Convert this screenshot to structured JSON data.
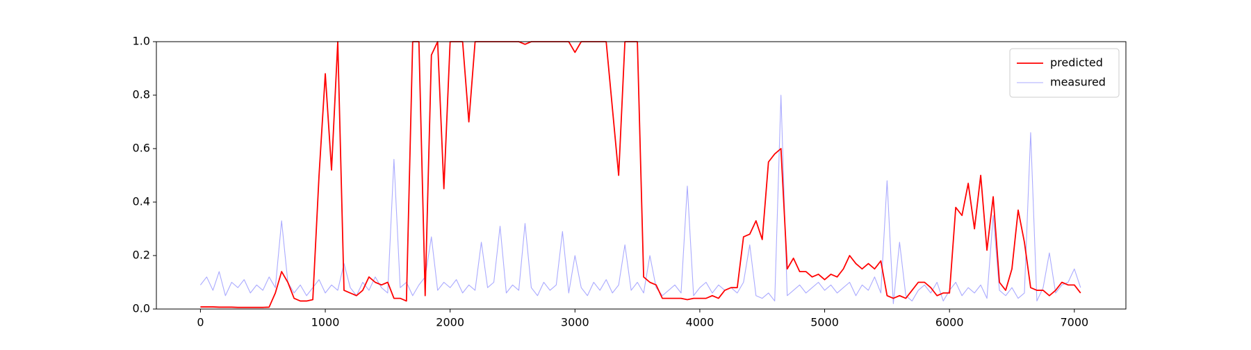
{
  "chart_data": {
    "type": "line",
    "x": [
      0,
      50,
      100,
      150,
      200,
      250,
      300,
      350,
      400,
      450,
      500,
      550,
      600,
      650,
      700,
      750,
      800,
      850,
      900,
      950,
      1000,
      1050,
      1100,
      1150,
      1200,
      1250,
      1300,
      1350,
      1400,
      1450,
      1500,
      1550,
      1600,
      1650,
      1700,
      1750,
      1800,
      1850,
      1900,
      1950,
      2000,
      2050,
      2100,
      2150,
      2200,
      2250,
      2300,
      2350,
      2400,
      2450,
      2500,
      2550,
      2600,
      2650,
      2700,
      2750,
      2800,
      2850,
      2900,
      2950,
      3000,
      3050,
      3100,
      3150,
      3200,
      3250,
      3300,
      3350,
      3400,
      3450,
      3500,
      3550,
      3600,
      3650,
      3700,
      3750,
      3800,
      3850,
      3900,
      3950,
      4000,
      4050,
      4100,
      4150,
      4200,
      4250,
      4300,
      4350,
      4400,
      4450,
      4500,
      4550,
      4600,
      4650,
      4700,
      4750,
      4800,
      4850,
      4900,
      4950,
      5000,
      5050,
      5100,
      5150,
      5200,
      5250,
      5300,
      5350,
      5400,
      5450,
      5500,
      5550,
      5600,
      5650,
      5700,
      5750,
      5800,
      5850,
      5900,
      5950,
      6000,
      6050,
      6100,
      6150,
      6200,
      6250,
      6300,
      6350,
      6400,
      6450,
      6500,
      6550,
      6600,
      6650,
      6700,
      6750,
      6800,
      6850,
      6900,
      6950,
      7000,
      7050
    ],
    "series": [
      {
        "name": "predicted",
        "color": "#ff0000",
        "width": 1.8,
        "values": [
          0.008,
          0.008,
          0.008,
          0.007,
          0.007,
          0.007,
          0.006,
          0.006,
          0.006,
          0.006,
          0.006,
          0.007,
          0.06,
          0.14,
          0.1,
          0.04,
          0.03,
          0.03,
          0.035,
          0.5,
          0.88,
          0.52,
          1.0,
          0.07,
          0.06,
          0.05,
          0.07,
          0.12,
          0.1,
          0.09,
          0.1,
          0.04,
          0.04,
          0.03,
          1.0,
          1.0,
          0.05,
          0.95,
          1.0,
          0.45,
          1.0,
          1.0,
          1.0,
          0.7,
          1.0,
          1.0,
          1.0,
          1.0,
          1.0,
          1.0,
          1.0,
          1.0,
          0.99,
          1.0,
          1.0,
          1.0,
          1.0,
          1.0,
          1.0,
          1.0,
          0.96,
          1.0,
          1.0,
          1.0,
          1.0,
          1.0,
          0.75,
          0.5,
          1.0,
          1.0,
          1.0,
          0.12,
          0.1,
          0.09,
          0.04,
          0.04,
          0.04,
          0.04,
          0.035,
          0.04,
          0.04,
          0.04,
          0.05,
          0.04,
          0.07,
          0.08,
          0.08,
          0.27,
          0.28,
          0.33,
          0.26,
          0.55,
          0.58,
          0.6,
          0.15,
          0.19,
          0.14,
          0.14,
          0.12,
          0.13,
          0.11,
          0.13,
          0.12,
          0.15,
          0.2,
          0.17,
          0.15,
          0.17,
          0.15,
          0.18,
          0.05,
          0.04,
          0.05,
          0.04,
          0.07,
          0.1,
          0.1,
          0.08,
          0.05,
          0.06,
          0.06,
          0.38,
          0.35,
          0.47,
          0.3,
          0.5,
          0.22,
          0.42,
          0.1,
          0.07,
          0.15,
          0.37,
          0.25,
          0.08,
          0.07,
          0.07,
          0.05,
          0.07,
          0.1,
          0.09,
          0.09,
          0.06
        ]
      },
      {
        "name": "measured",
        "color": "#aaaaff",
        "width": 1.1,
        "values": [
          0.09,
          0.12,
          0.07,
          0.14,
          0.05,
          0.1,
          0.08,
          0.11,
          0.06,
          0.09,
          0.07,
          0.12,
          0.08,
          0.33,
          0.1,
          0.06,
          0.09,
          0.05,
          0.08,
          0.11,
          0.06,
          0.09,
          0.07,
          0.17,
          0.08,
          0.05,
          0.1,
          0.07,
          0.12,
          0.08,
          0.06,
          0.56,
          0.08,
          0.1,
          0.05,
          0.09,
          0.12,
          0.27,
          0.07,
          0.1,
          0.08,
          0.11,
          0.06,
          0.09,
          0.07,
          0.25,
          0.08,
          0.1,
          0.31,
          0.06,
          0.09,
          0.07,
          0.32,
          0.08,
          0.05,
          0.1,
          0.07,
          0.09,
          0.29,
          0.06,
          0.2,
          0.08,
          0.05,
          0.1,
          0.07,
          0.11,
          0.06,
          0.09,
          0.24,
          0.07,
          0.1,
          0.06,
          0.2,
          0.08,
          0.05,
          0.07,
          0.09,
          0.06,
          0.46,
          0.05,
          0.08,
          0.1,
          0.06,
          0.09,
          0.07,
          0.08,
          0.06,
          0.1,
          0.24,
          0.05,
          0.04,
          0.06,
          0.03,
          0.8,
          0.05,
          0.07,
          0.09,
          0.06,
          0.08,
          0.1,
          0.07,
          0.09,
          0.06,
          0.08,
          0.1,
          0.05,
          0.09,
          0.07,
          0.12,
          0.06,
          0.48,
          0.02,
          0.25,
          0.05,
          0.03,
          0.07,
          0.09,
          0.06,
          0.1,
          0.03,
          0.07,
          0.1,
          0.05,
          0.08,
          0.06,
          0.09,
          0.04,
          0.35,
          0.07,
          0.05,
          0.08,
          0.04,
          0.06,
          0.66,
          0.03,
          0.08,
          0.21,
          0.06,
          0.09,
          0.1,
          0.15,
          0.08
        ]
      }
    ],
    "xlim": [
      -353,
      7413
    ],
    "xticks": [
      0,
      1000,
      2000,
      3000,
      4000,
      5000,
      6000,
      7000
    ],
    "ylim": [
      0,
      1
    ],
    "yticks": [
      {
        "value": 0,
        "label": "0.0"
      },
      0.2,
      0.4,
      0.6,
      0.8,
      {
        "value": 1,
        "label": "1.0"
      }
    ],
    "grid": false,
    "legend": "upper right"
  }
}
